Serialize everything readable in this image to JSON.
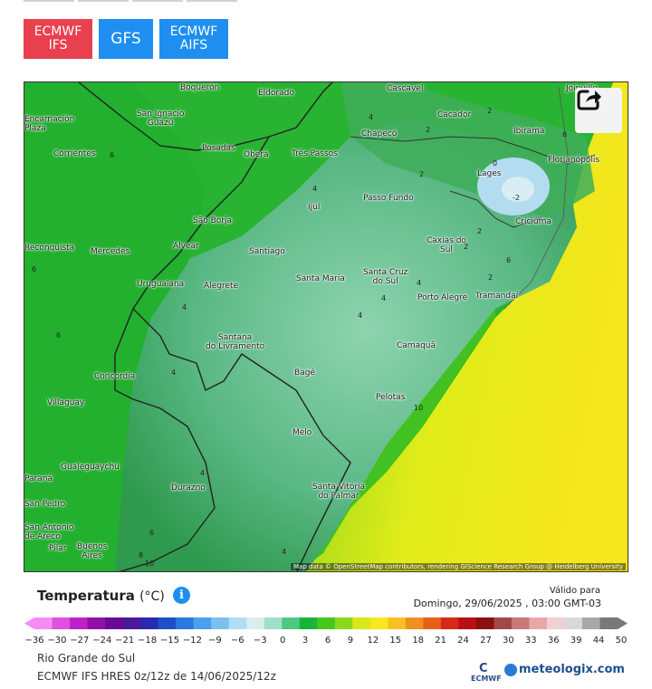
{
  "models": [
    {
      "id": "ecmwf-ifs",
      "label": "ECMWF\nIFS",
      "color": "#e8404e",
      "active": true
    },
    {
      "id": "gfs",
      "label": "GFS",
      "color": "#1e8ff0",
      "active": false
    },
    {
      "id": "ecmwf-aifs",
      "label": "ECMWF\nAIFS",
      "color": "#1e8ff0",
      "active": false
    }
  ],
  "map": {
    "share_icon": "share-arrow-icon",
    "attribution": "Map data © OpenStreetMap contributors, rendering GIScience Research Group @ Heidelberg University",
    "cities": [
      {
        "name": "Joinville"
      },
      {
        "name": "Boquerón"
      },
      {
        "name": "Eldorado"
      },
      {
        "name": "Cascavel"
      },
      {
        "name": "San Ignacio\nGuazú"
      },
      {
        "name": "Encarnación\nPlaza"
      },
      {
        "name": "Cacador"
      },
      {
        "name": "Ibirama"
      },
      {
        "name": "Chapecó"
      },
      {
        "name": "Posadas"
      },
      {
        "name": "Oberá"
      },
      {
        "name": "Três Passos"
      },
      {
        "name": "Corrientes"
      },
      {
        "name": "Florianópolis"
      },
      {
        "name": "Lages"
      },
      {
        "name": "Passo Fundo"
      },
      {
        "name": "Ijuí"
      },
      {
        "name": "São Borja"
      },
      {
        "name": "Criciúma"
      },
      {
        "name": "Caxias do\nSul"
      },
      {
        "name": "Alvear"
      },
      {
        "name": "Santiago"
      },
      {
        "name": "Mercedes"
      },
      {
        "name": "Reconquista"
      },
      {
        "name": "Santa Maria"
      },
      {
        "name": "Santa Cruz\ndo Sul"
      },
      {
        "name": "Uruguaiana"
      },
      {
        "name": "Alegrete"
      },
      {
        "name": "Porto Alegre"
      },
      {
        "name": "Tramandaí"
      },
      {
        "name": "Santana\ndo Livramento"
      },
      {
        "name": "Camaquã"
      },
      {
        "name": "Concordia"
      },
      {
        "name": "Bagé"
      },
      {
        "name": "Villaguay"
      },
      {
        "name": "Pelotas"
      },
      {
        "name": "Melo"
      },
      {
        "name": "Gualeguaychú"
      },
      {
        "name": "Paraná"
      },
      {
        "name": "Durazno"
      },
      {
        "name": "Santa Vitória\ndo Palmar"
      },
      {
        "name": "San Pedro"
      },
      {
        "name": "San Antonio\nde Areco"
      },
      {
        "name": "Pilar"
      },
      {
        "name": "Buenos\nAires"
      }
    ],
    "isolines": [
      "4",
      "2",
      "6",
      "2",
      "2",
      "0",
      "-2",
      "4",
      "4",
      "2",
      "2",
      "2",
      "4",
      "6",
      "4",
      "6",
      "4",
      "4",
      "4",
      "10",
      "6",
      "6",
      "10",
      "8",
      "6",
      "4"
    ]
  },
  "legend": {
    "variable": "Temperatura",
    "unit": "(°C)",
    "info_icon": "info-icon",
    "valid_label": "Válido para",
    "valid_date": "Domingo, 29/06/2025 , 03:00 GMT-03",
    "ticks": [
      "−36",
      "−30",
      "−27",
      "−24",
      "−21",
      "−18",
      "−15",
      "−12",
      "−9",
      "−6",
      "−3",
      "0",
      "3",
      "6",
      "9",
      "12",
      "15",
      "18",
      "21",
      "24",
      "27",
      "30",
      "33",
      "36",
      "39",
      "44",
      "50"
    ],
    "colors": [
      "#f58cf5",
      "#e050e0",
      "#c020c8",
      "#9010a8",
      "#6a0a90",
      "#4a1a9a",
      "#2a2ab0",
      "#1e4fc8",
      "#2a78e0",
      "#4aa0ec",
      "#7cc0f0",
      "#b0dcf4",
      "#d8eef0",
      "#9ee0c8",
      "#4ec87e",
      "#18b43a",
      "#44c81e",
      "#8cd81a",
      "#d8e81a",
      "#f8e820",
      "#f8c020",
      "#f09020",
      "#e86018",
      "#d82818",
      "#b81010",
      "#8c1010",
      "#a04848",
      "#c87878",
      "#e8a8a8",
      "#f0d0d0",
      "#d8d8d8",
      "#a8a8a8",
      "#787878"
    ],
    "region": "Rio Grande do Sul",
    "run": "ECMWF IFS HRES 0z/12z de 14/06/2025/12z"
  },
  "logos": {
    "ecmwf": "ECMWF",
    "meteologix": "meteologix.com"
  }
}
